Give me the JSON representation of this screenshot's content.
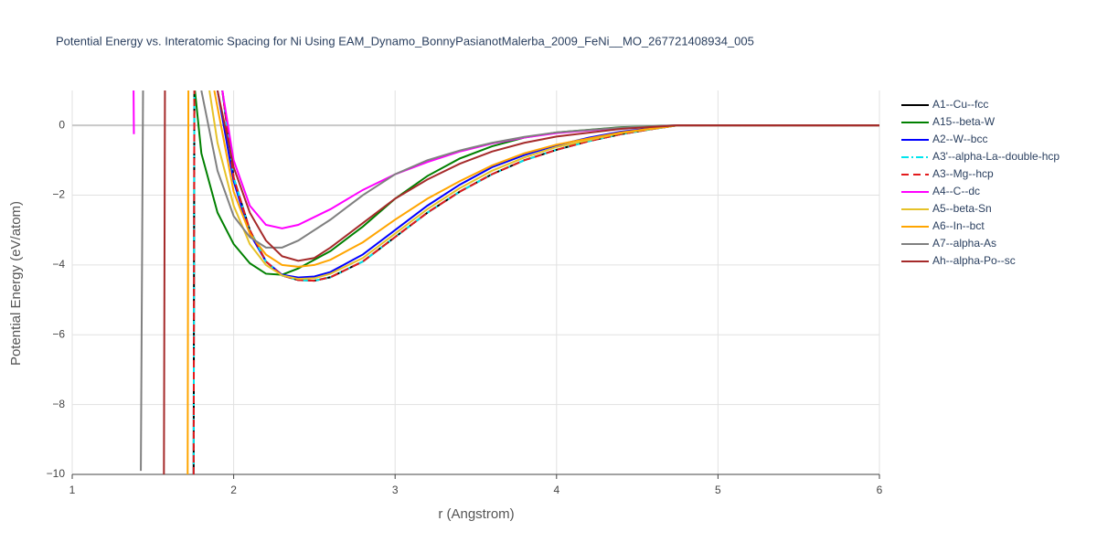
{
  "chart_data": {
    "type": "line",
    "title": "Potential Energy vs. Interatomic Spacing for Ni Using EAM_Dynamo_BonnyPasianotMalerba_2009_FeNi__MO_267721408934_005",
    "x_label": "r (Angstrom)",
    "y_label": "Potential Energy (eV/atom)",
    "xlim": [
      1,
      6
    ],
    "ylim": [
      -10,
      1
    ],
    "xticks": [
      1,
      2,
      3,
      4,
      5,
      6
    ],
    "yticks": [
      {
        "value": -10,
        "label": "−10"
      },
      {
        "value": -8,
        "label": "−8"
      },
      {
        "value": -6,
        "label": "−6"
      },
      {
        "value": -4,
        "label": "−4"
      },
      {
        "value": -2,
        "label": "−2"
      },
      0
    ],
    "grid": true,
    "legend": "right",
    "series": [
      {
        "name": "A1--Cu--fcc",
        "color": "#000000",
        "dash": "solid",
        "x": [
          1.752,
          1.757,
          1.8,
          1.93,
          2.0,
          2.1,
          2.2,
          2.3,
          2.4,
          2.5,
          2.6,
          2.8,
          3.0,
          3.2,
          3.4,
          3.6,
          3.8,
          4.0,
          4.2,
          4.4,
          4.6,
          4.75,
          6.0
        ],
        "values": [
          -10,
          2,
          null,
          1,
          -1.5,
          -3.0,
          -3.9,
          -4.3,
          -4.43,
          -4.45,
          -4.35,
          -3.9,
          -3.2,
          -2.5,
          -1.9,
          -1.4,
          -1.0,
          -0.7,
          -0.45,
          -0.25,
          -0.1,
          0,
          0
        ]
      },
      {
        "name": "A15--beta-W",
        "color": "#008000",
        "dash": "solid",
        "x": [
          1.76,
          1.8,
          1.9,
          2.0,
          2.1,
          2.2,
          2.3,
          2.4,
          2.6,
          2.8,
          3.0,
          3.2,
          3.4,
          3.6,
          3.8,
          4.0,
          4.4,
          4.75,
          6.0
        ],
        "values": [
          1,
          -0.8,
          -2.5,
          -3.4,
          -3.95,
          -4.25,
          -4.28,
          -4.1,
          -3.6,
          -2.9,
          -2.1,
          -1.45,
          -0.95,
          -0.6,
          -0.35,
          -0.2,
          -0.05,
          0,
          0
        ]
      },
      {
        "name": "A2--W--bcc",
        "color": "#0000ff",
        "dash": "solid",
        "x": [
          1.9,
          2.0,
          2.1,
          2.2,
          2.3,
          2.4,
          2.5,
          2.6,
          2.8,
          3.0,
          3.2,
          3.4,
          3.6,
          3.8,
          4.0,
          4.2,
          4.4,
          4.75,
          6.0
        ],
        "values": [
          1,
          -1.6,
          -3.1,
          -3.9,
          -4.28,
          -4.36,
          -4.33,
          -4.2,
          -3.7,
          -3.0,
          -2.3,
          -1.7,
          -1.2,
          -0.85,
          -0.57,
          -0.35,
          -0.18,
          0,
          0
        ]
      },
      {
        "name": "A3'--alpha-La--double-hcp",
        "color": "#00e5ee",
        "dash": "dashdot",
        "x": [
          1.752,
          1.757,
          1.8,
          1.93,
          2.0,
          2.1,
          2.2,
          2.3,
          2.4,
          2.5,
          2.6,
          2.8,
          3.0,
          3.2,
          3.4,
          3.6,
          3.8,
          4.0,
          4.2,
          4.4,
          4.6,
          4.75,
          6.0
        ],
        "values": [
          -10,
          2,
          null,
          1,
          -1.5,
          -3.0,
          -3.9,
          -4.3,
          -4.43,
          -4.45,
          -4.35,
          -3.9,
          -3.2,
          -2.5,
          -1.9,
          -1.4,
          -1.0,
          -0.7,
          -0.45,
          -0.25,
          -0.1,
          0,
          0
        ]
      },
      {
        "name": "A3--Mg--hcp",
        "color": "#e31a1c",
        "dash": "dash",
        "x": [
          1.752,
          1.757,
          1.8,
          1.93,
          2.0,
          2.1,
          2.2,
          2.3,
          2.4,
          2.5,
          2.6,
          2.8,
          3.0,
          3.2,
          3.4,
          3.6,
          3.8,
          4.0,
          4.2,
          4.4,
          4.6,
          4.75,
          6.0
        ],
        "values": [
          -10,
          2,
          null,
          1,
          -1.5,
          -3.0,
          -3.9,
          -4.3,
          -4.43,
          -4.45,
          -4.35,
          -3.9,
          -3.2,
          -2.5,
          -1.9,
          -1.4,
          -1.0,
          -0.7,
          -0.45,
          -0.25,
          -0.1,
          0,
          0
        ]
      },
      {
        "name": "A4--C--dc",
        "color": "#ff00ff",
        "dash": "solid",
        "x": [
          1.38,
          1.382,
          1.6,
          1.93,
          2.0,
          2.1,
          2.2,
          2.3,
          2.4,
          2.6,
          2.8,
          3.0,
          3.2,
          3.4,
          3.6,
          3.8,
          4.0,
          4.4,
          4.75,
          6.0
        ],
        "values": [
          1,
          -0.25,
          null,
          1,
          -1.0,
          -2.3,
          -2.85,
          -2.95,
          -2.85,
          -2.4,
          -1.85,
          -1.4,
          -1.05,
          -0.75,
          -0.52,
          -0.35,
          -0.22,
          -0.07,
          0,
          0
        ]
      },
      {
        "name": "A5--beta-Sn",
        "color": "#e6c229",
        "dash": "solid",
        "x": [
          1.85,
          1.9,
          2.0,
          2.1,
          2.2,
          2.3,
          2.4,
          2.5,
          2.6,
          2.8,
          3.0,
          3.2,
          3.4,
          3.6,
          3.8,
          4.0,
          4.4,
          4.75,
          6.0
        ],
        "values": [
          1,
          -0.5,
          -2.3,
          -3.4,
          -4.0,
          -4.3,
          -4.4,
          -4.38,
          -4.25,
          -3.8,
          -3.1,
          -2.4,
          -1.8,
          -1.3,
          -0.92,
          -0.62,
          -0.22,
          0,
          0
        ]
      },
      {
        "name": "A6--In--bct",
        "color": "#ffa500",
        "dash": "solid",
        "x": [
          1.715,
          1.72,
          1.8,
          1.88,
          2.0,
          2.1,
          2.2,
          2.3,
          2.4,
          2.5,
          2.6,
          2.8,
          3.0,
          3.2,
          3.4,
          3.6,
          3.8,
          4.0,
          4.4,
          4.75,
          6.0
        ],
        "values": [
          -10,
          2,
          null,
          1,
          -1.9,
          -3.1,
          -3.7,
          -4.0,
          -4.05,
          -4.0,
          -3.85,
          -3.35,
          -2.7,
          -2.1,
          -1.6,
          -1.15,
          -0.8,
          -0.55,
          -0.2,
          0,
          0
        ]
      },
      {
        "name": "A7--alpha-As",
        "color": "#808080",
        "dash": "solid",
        "x": [
          1.425,
          1.44,
          1.6,
          1.8,
          1.9,
          2.0,
          2.1,
          2.2,
          2.3,
          2.4,
          2.6,
          2.8,
          3.0,
          3.2,
          3.4,
          3.6,
          3.8,
          4.0,
          4.4,
          4.75,
          6.0
        ],
        "values": [
          -9.9,
          2,
          null,
          1,
          -1.3,
          -2.6,
          -3.2,
          -3.5,
          -3.5,
          -3.3,
          -2.7,
          -2.0,
          -1.4,
          -1.0,
          -0.72,
          -0.5,
          -0.33,
          -0.2,
          -0.06,
          0,
          0
        ]
      },
      {
        "name": "Ah--alpha-Po--sc",
        "color": "#a52a2a",
        "dash": "solid",
        "x": [
          1.568,
          1.575,
          1.7,
          1.9,
          2.0,
          2.1,
          2.2,
          2.3,
          2.4,
          2.5,
          2.6,
          2.8,
          3.0,
          3.2,
          3.4,
          3.6,
          3.8,
          4.0,
          4.4,
          4.75,
          6.0
        ],
        "values": [
          -10,
          2,
          null,
          1,
          -1.2,
          -2.5,
          -3.3,
          -3.75,
          -3.88,
          -3.8,
          -3.5,
          -2.8,
          -2.1,
          -1.55,
          -1.1,
          -0.75,
          -0.5,
          -0.32,
          -0.1,
          0,
          0
        ]
      }
    ]
  }
}
